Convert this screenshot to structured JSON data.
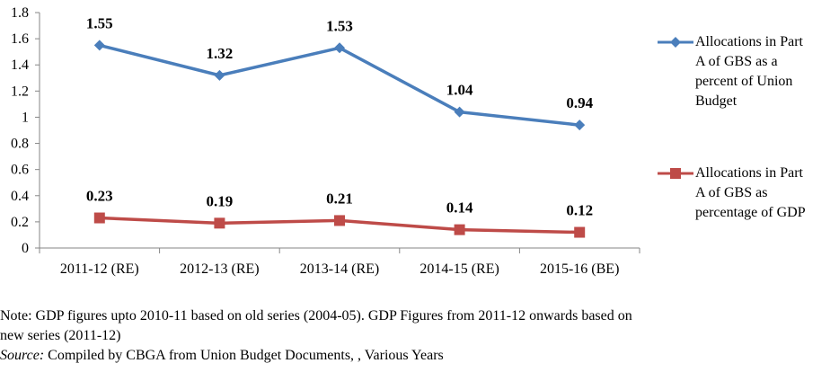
{
  "chart_data": {
    "type": "line",
    "categories": [
      "2011-12 (RE)",
      "2012-13 (RE)",
      "2013-14 (RE)",
      "2014-15 (RE)",
      "2015-16 (BE)"
    ],
    "series": [
      {
        "name": "Allocations in Part A of GBS as a percent of Union Budget",
        "values": [
          1.55,
          1.32,
          1.53,
          1.04,
          0.94
        ],
        "labels": [
          "1.55",
          "1.32",
          "1.53",
          "1.04",
          "0.94"
        ],
        "color": "#4a7ebb",
        "marker": "diamond"
      },
      {
        "name": "Allocations in Part A of GBS as percentage of GDP",
        "values": [
          0.23,
          0.19,
          0.21,
          0.14,
          0.12
        ],
        "labels": [
          "0.23",
          "0.19",
          "0.21",
          "0.14",
          "0.12"
        ],
        "color": "#be4b48",
        "marker": "square"
      }
    ],
    "ylim": [
      0,
      1.8
    ],
    "yticks": [
      "0",
      "0.2",
      "0.4",
      "0.6",
      "0.8",
      "1",
      "1.2",
      "1.4",
      "1.6",
      "1.8"
    ],
    "grid": false,
    "legend_position": "right"
  },
  "legend": {
    "items": [
      {
        "lines": [
          "Allocations in Part",
          "A of GBS as a",
          "percent of Union",
          "Budget"
        ]
      },
      {
        "lines": [
          "Allocations in Part",
          "A of GBS as",
          "percentage of GDP"
        ]
      }
    ]
  },
  "notes": {
    "line1": "Note: GDP figures upto 2010-11 based on old series (2004-05). GDP Figures from 2011-12 onwards based on",
    "line2": "new series (2011-12)",
    "source_label": "Source:",
    "source_text": " Compiled by CBGA from Union Budget Documents, , Various Years"
  }
}
